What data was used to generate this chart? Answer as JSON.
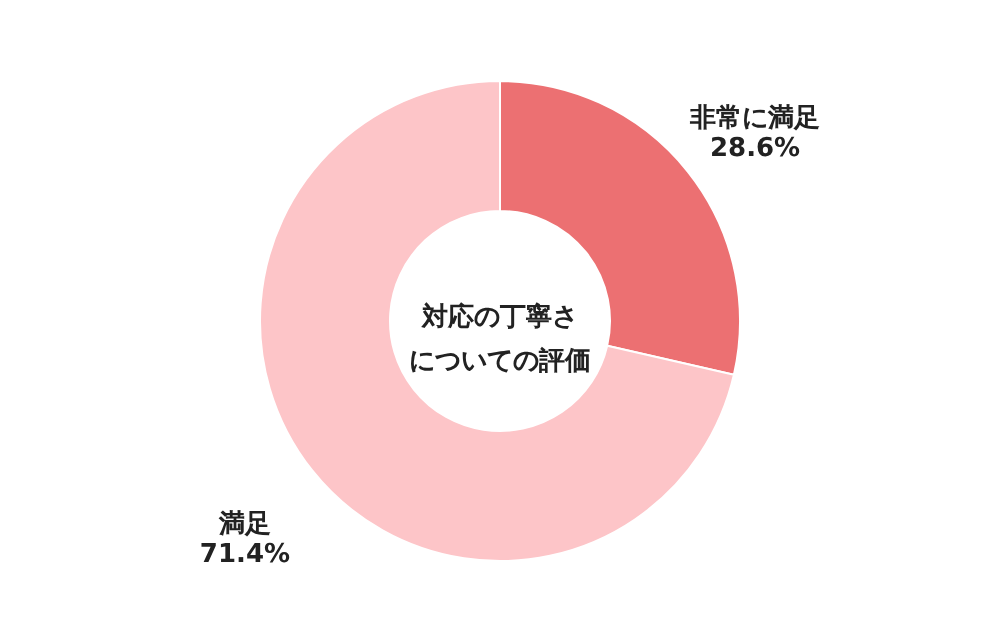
{
  "chart_data": {
    "type": "donut",
    "title": "対応の丁寧さについての評価",
    "categories": [
      "非常に満足",
      "満足"
    ],
    "values": [
      28.6,
      71.4
    ],
    "colors": [
      "#ec7072",
      "#fdc5c8"
    ],
    "value_labels": [
      "28.6%",
      "71.4%"
    ]
  }
}
